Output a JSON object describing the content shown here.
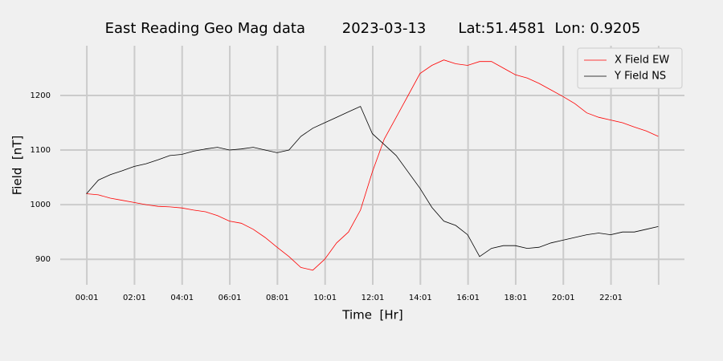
{
  "chart_data": {
    "type": "line",
    "title": "East Reading Geo Mag data        2023-03-13       Lat:51.4581  Lon: 0.9205",
    "x_label": "Time  [Hr]",
    "y_label": "Field  [nT]",
    "x": [
      0,
      0.5,
      1,
      1.5,
      2,
      2.5,
      3,
      3.5,
      4,
      4.5,
      5,
      5.5,
      6,
      6.5,
      7,
      7.5,
      8,
      8.5,
      9,
      9.5,
      10,
      10.5,
      11,
      11.5,
      12,
      12.5,
      13,
      13.5,
      14,
      14.5,
      15,
      15.5,
      16,
      16.5,
      17,
      17.5,
      18,
      18.5,
      19,
      19.5,
      20,
      20.5,
      21,
      21.5,
      22,
      22.5,
      23,
      23.5,
      24
    ],
    "series": [
      {
        "name": "X Field EW",
        "color": "#ff0000",
        "values": [
          1020,
          1018,
          1012,
          1008,
          1004,
          1000,
          997,
          996,
          994,
          990,
          987,
          980,
          970,
          966,
          955,
          940,
          922,
          905,
          885,
          880,
          900,
          930,
          950,
          990,
          1060,
          1120,
          1160,
          1200,
          1240,
          1255,
          1265,
          1258,
          1255,
          1262,
          1262,
          1250,
          1238,
          1232,
          1222,
          1210,
          1198,
          1185,
          1168,
          1160,
          1155,
          1150,
          1142,
          1135,
          1125
        ]
      },
      {
        "name": "Y Field NS",
        "color": "#000000",
        "values": [
          1020,
          1045,
          1055,
          1062,
          1070,
          1075,
          1082,
          1090,
          1092,
          1098,
          1102,
          1105,
          1100,
          1102,
          1105,
          1100,
          1095,
          1100,
          1125,
          1140,
          1150,
          1160,
          1170,
          1180,
          1130,
          1110,
          1090,
          1060,
          1030,
          995,
          970,
          962,
          945,
          905,
          920,
          925,
          925,
          920,
          922,
          930,
          935,
          940,
          945,
          948,
          945,
          950,
          950,
          955,
          960
        ]
      }
    ],
    "xlim": [
      -1.1,
      25.1
    ],
    "xticks": [
      {
        "value": 0.0167,
        "label": "00:01"
      },
      {
        "value": 2.0167,
        "label": "02:01"
      },
      {
        "value": 4.0167,
        "label": "04:01"
      },
      {
        "value": 6.0167,
        "label": "06:01"
      },
      {
        "value": 8.0167,
        "label": "08:01"
      },
      {
        "value": 10.0167,
        "label": "10:01"
      },
      {
        "value": 12.0167,
        "label": "12:01"
      },
      {
        "value": 14.0167,
        "label": "14:01"
      },
      {
        "value": 16.0167,
        "label": "16:01"
      },
      {
        "value": 18.0167,
        "label": "18:01"
      },
      {
        "value": 20.0167,
        "label": "20:01"
      },
      {
        "value": 22.0167,
        "label": "22:01"
      },
      {
        "value": 24.0167,
        "label": null
      }
    ],
    "ylim": [
      868,
      1291
    ],
    "yticks": [
      900,
      1000,
      1100,
      1200
    ],
    "grid": true,
    "legend": "upper right"
  }
}
